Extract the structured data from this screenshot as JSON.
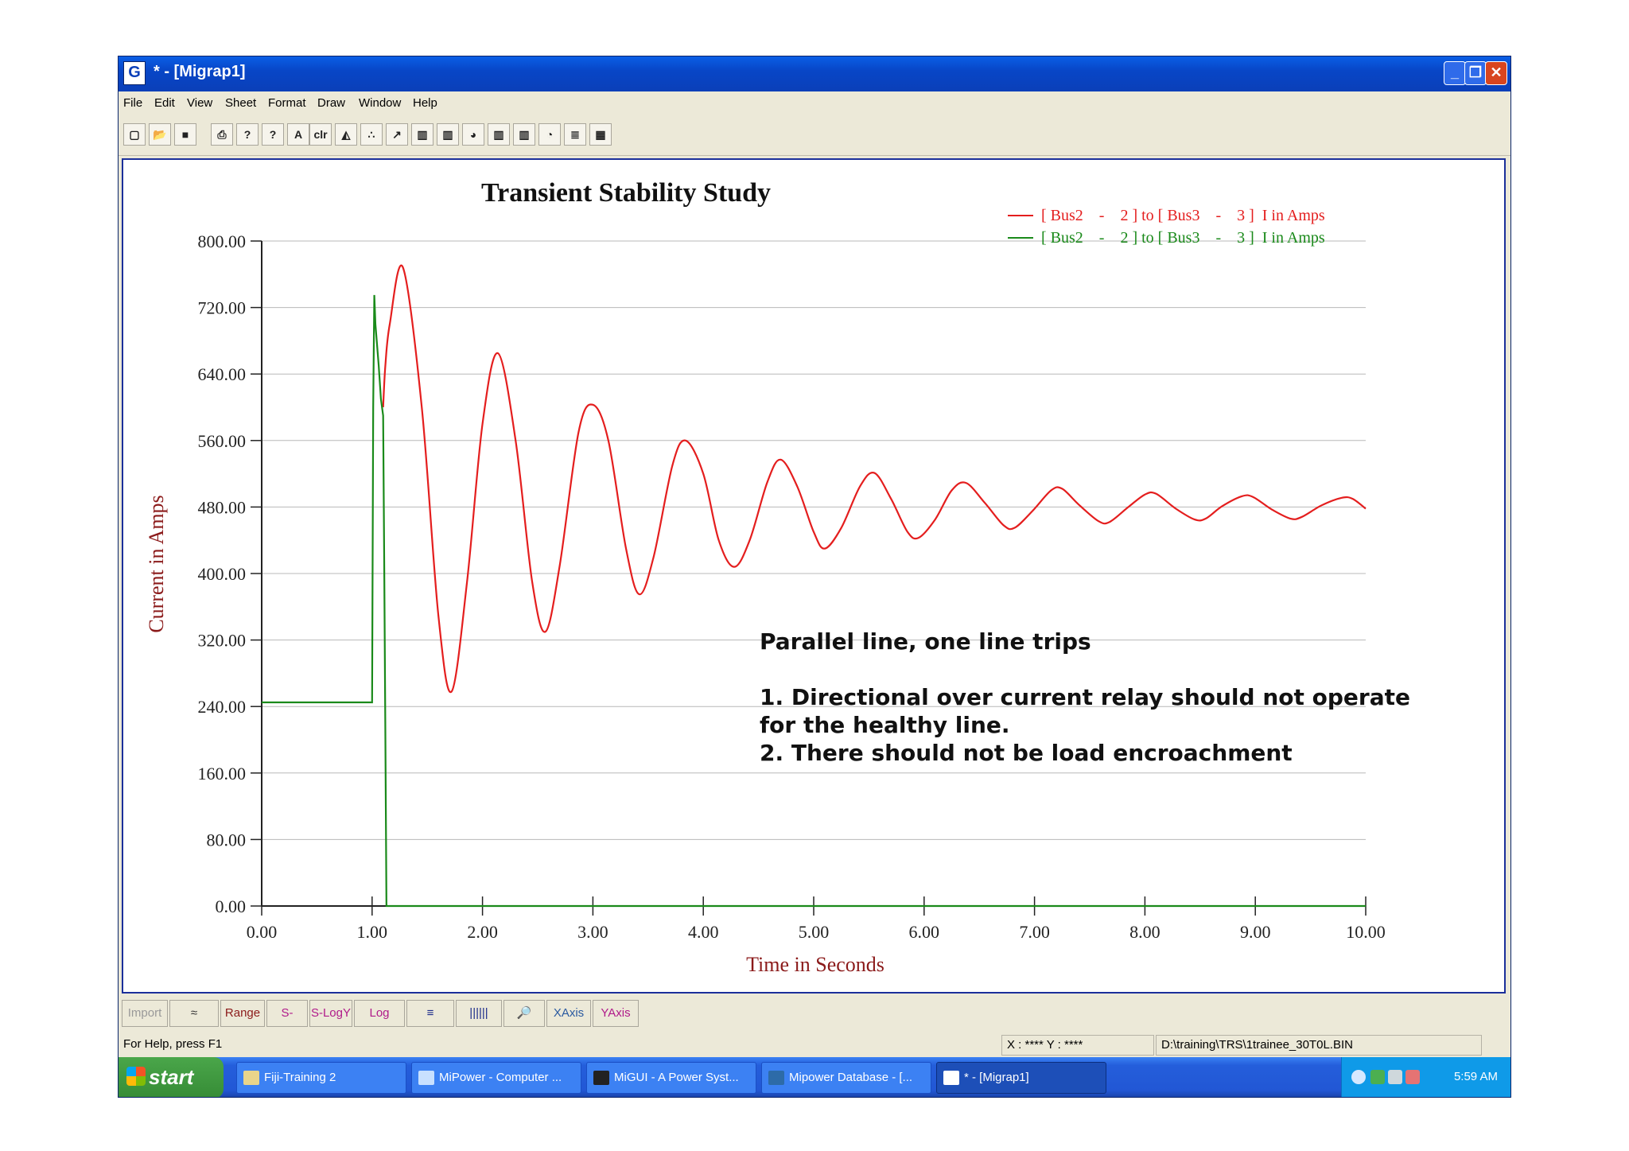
{
  "window": {
    "title": "* - [Migrap1]",
    "app_icon_letter": "G",
    "buttons": {
      "minimize": "_",
      "restore": "❐",
      "close": "✕"
    }
  },
  "menu": [
    "File",
    "Edit",
    "View",
    "Sheet",
    "Format",
    "Draw",
    "Window",
    "Help"
  ],
  "toolbar": {
    "buttons": [
      {
        "icon": "new-file-icon",
        "glyph": "▢"
      },
      {
        "icon": "open-folder-icon",
        "glyph": "📂"
      },
      {
        "icon": "save-icon",
        "glyph": "■"
      },
      {
        "icon": "print-icon",
        "glyph": "⎙"
      },
      {
        "icon": "help-icon",
        "glyph": "?"
      },
      {
        "icon": "context-help-icon",
        "glyph": "?"
      },
      {
        "icon": "text-icon",
        "glyph": "A"
      },
      {
        "icon": "color-icon",
        "glyph": "clr"
      },
      {
        "icon": "area-chart-icon",
        "glyph": "◭"
      },
      {
        "icon": "scatter-chart-icon",
        "glyph": "∴"
      },
      {
        "icon": "line-chart-icon",
        "glyph": "↗"
      },
      {
        "icon": "bar-chart-icon",
        "glyph": "▥"
      },
      {
        "icon": "bar-chart-2-icon",
        "glyph": "▥"
      },
      {
        "icon": "pie-chart-icon",
        "glyph": "◕"
      },
      {
        "icon": "bar-chart-3-icon",
        "glyph": "▥"
      },
      {
        "icon": "bar-chart-4-icon",
        "glyph": "▥"
      },
      {
        "icon": "pie-chart-2-icon",
        "glyph": "◔"
      },
      {
        "icon": "stacked-chart-icon",
        "glyph": "≣"
      },
      {
        "icon": "chart-type-icon",
        "glyph": "▦"
      }
    ]
  },
  "chart_data": {
    "type": "line",
    "title": "Transient Stability Study",
    "xlabel": "Time in Seconds",
    "ylabel": "Current in Amps",
    "xlim": [
      0,
      10
    ],
    "ylim": [
      0,
      800
    ],
    "x_ticks": [
      "0.00",
      "1.00",
      "2.00",
      "3.00",
      "4.00",
      "5.00",
      "6.00",
      "7.00",
      "8.00",
      "9.00",
      "10.00"
    ],
    "y_ticks": [
      "0.00",
      "80.00",
      "160.00",
      "240.00",
      "320.00",
      "400.00",
      "480.00",
      "560.00",
      "640.00",
      "720.00",
      "800.00"
    ],
    "grid": "horizontal",
    "legend_position": "top-right",
    "legend": [
      {
        "text": "[ Bus2    -    2 ] to [ Bus3    -    3 ]  I in Amps",
        "color": "#e41e1e"
      },
      {
        "text": "[ Bus2    -    2 ] to [ Bus3    -    3 ]  I in Amps",
        "color": "#1a8a1a"
      }
    ],
    "series": [
      {
        "color": "#e41e1e",
        "points": [
          [
            1.1,
            600
          ],
          [
            1.12,
            650
          ],
          [
            1.16,
            700
          ],
          [
            1.28,
            768
          ],
          [
            1.45,
            600
          ],
          [
            1.6,
            350
          ],
          [
            1.72,
            258
          ],
          [
            1.86,
            390
          ],
          [
            2.0,
            580
          ],
          [
            2.14,
            665
          ],
          [
            2.3,
            560
          ],
          [
            2.45,
            390
          ],
          [
            2.57,
            330
          ],
          [
            2.7,
            410
          ],
          [
            2.87,
            570
          ],
          [
            3.0,
            603
          ],
          [
            3.14,
            560
          ],
          [
            3.3,
            430
          ],
          [
            3.42,
            375
          ],
          [
            3.55,
            420
          ],
          [
            3.72,
            530
          ],
          [
            3.84,
            560
          ],
          [
            4.0,
            520
          ],
          [
            4.14,
            440
          ],
          [
            4.28,
            408
          ],
          [
            4.42,
            440
          ],
          [
            4.58,
            510
          ],
          [
            4.7,
            537
          ],
          [
            4.85,
            505
          ],
          [
            5.0,
            450
          ],
          [
            5.1,
            430
          ],
          [
            5.25,
            455
          ],
          [
            5.42,
            505
          ],
          [
            5.55,
            521
          ],
          [
            5.7,
            490
          ],
          [
            5.85,
            450
          ],
          [
            5.95,
            443
          ],
          [
            6.1,
            465
          ],
          [
            6.25,
            500
          ],
          [
            6.38,
            509
          ],
          [
            6.55,
            485
          ],
          [
            6.72,
            458
          ],
          [
            6.82,
            455
          ],
          [
            6.98,
            475
          ],
          [
            7.15,
            500
          ],
          [
            7.25,
            502
          ],
          [
            7.4,
            483
          ],
          [
            7.58,
            463
          ],
          [
            7.68,
            462
          ],
          [
            7.85,
            480
          ],
          [
            8.0,
            495
          ],
          [
            8.1,
            496
          ],
          [
            8.28,
            478
          ],
          [
            8.45,
            465
          ],
          [
            8.55,
            466
          ],
          [
            8.7,
            481
          ],
          [
            8.88,
            493
          ],
          [
            8.98,
            492
          ],
          [
            9.15,
            477
          ],
          [
            9.32,
            466
          ],
          [
            9.42,
            468
          ],
          [
            9.6,
            482
          ],
          [
            9.78,
            491
          ],
          [
            9.88,
            490
          ],
          [
            10.0,
            478
          ]
        ]
      },
      {
        "color": "#1a8a1a",
        "points": [
          [
            0,
            245
          ],
          [
            1.0,
            245
          ],
          [
            1.01,
            600
          ],
          [
            1.02,
            735
          ],
          [
            1.03,
            700
          ],
          [
            1.06,
            650
          ],
          [
            1.08,
            610
          ],
          [
            1.1,
            590
          ],
          [
            1.11,
            410
          ],
          [
            1.12,
            210
          ],
          [
            1.13,
            0
          ],
          [
            10.0,
            0
          ]
        ]
      }
    ],
    "annotation": "Parallel line, one line trips\n\n1. Directional over current relay should not operate\nfor the healthy line.\n2. There should not be load encroachment"
  },
  "bottom_toolbar": [
    "Import",
    "≈",
    "Range",
    "S-LogX",
    "S-LogY",
    "Log",
    "≡",
    "||||||",
    "🔎",
    "XAxis",
    "YAxis"
  ],
  "status": {
    "help": "For Help, press F1",
    "coords": "X : ****   Y : ****",
    "file": "D:\\training\\TRS\\1trainee_30T0L.BIN"
  },
  "taskbar": {
    "start": "start",
    "tasks": [
      "Fiji-Training 2",
      "MiPower - Computer ...",
      "MiGUI - A Power Syst...",
      "Mipower Database - [...",
      "* - [Migrap1]"
    ],
    "clock": "5:59 AM"
  },
  "colors": {
    "red_series": "#e41e1e",
    "green_series": "#1a8a1a",
    "axis_label": "#8b1a1a",
    "title_bar": "#0846c7"
  }
}
